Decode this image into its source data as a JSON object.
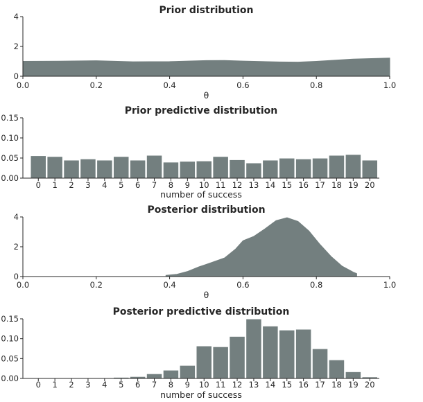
{
  "chart_data": [
    {
      "type": "area",
      "title": "Prior distribution",
      "xlabel": "θ",
      "ylabel": "",
      "xlim": [
        0,
        1
      ],
      "ylim": [
        0,
        4
      ],
      "xticks": [
        "0.0",
        "0.2",
        "0.4",
        "0.6",
        "0.8",
        "1.0"
      ],
      "yticks": [
        "0",
        "2",
        "4"
      ],
      "fill_color": "#737f7f",
      "x": [
        0.0,
        0.1,
        0.2,
        0.3,
        0.4,
        0.5,
        0.55,
        0.6,
        0.7,
        0.75,
        0.8,
        0.9,
        1.0
      ],
      "y": [
        1.0,
        1.01,
        1.04,
        0.97,
        0.98,
        1.05,
        1.06,
        1.02,
        0.96,
        0.95,
        1.0,
        1.15,
        1.22
      ]
    },
    {
      "type": "bar",
      "title": "Prior predictive distribution",
      "xlabel": "number of success",
      "ylabel": "",
      "ylim": [
        0,
        0.15
      ],
      "yticks": [
        "0.00",
        "0.05",
        "0.10",
        "0.15"
      ],
      "bar_color": "#737f7f",
      "categories": [
        "0",
        "1",
        "2",
        "3",
        "4",
        "5",
        "6",
        "7",
        "8",
        "9",
        "10",
        "11",
        "12",
        "13",
        "14",
        "15",
        "16",
        "17",
        "18",
        "19",
        "20"
      ],
      "values": [
        0.055,
        0.053,
        0.044,
        0.047,
        0.044,
        0.053,
        0.044,
        0.056,
        0.039,
        0.041,
        0.042,
        0.053,
        0.045,
        0.037,
        0.044,
        0.049,
        0.047,
        0.049,
        0.056,
        0.058,
        0.044
      ]
    },
    {
      "type": "area",
      "title": "Posterior distribution",
      "xlabel": "θ",
      "ylabel": "",
      "xlim": [
        0,
        1
      ],
      "ylim": [
        0,
        4
      ],
      "xticks": [
        "0.0",
        "0.2",
        "0.4",
        "0.6",
        "0.8",
        "1.0"
      ],
      "yticks": [
        "0",
        "2",
        "4"
      ],
      "fill_color": "#737f7f",
      "x": [
        0.39,
        0.42,
        0.45,
        0.48,
        0.51,
        0.55,
        0.58,
        0.6,
        0.63,
        0.66,
        0.69,
        0.72,
        0.75,
        0.78,
        0.81,
        0.84,
        0.87,
        0.9,
        0.91
      ],
      "y": [
        0.08,
        0.15,
        0.35,
        0.65,
        0.9,
        1.25,
        1.85,
        2.4,
        2.7,
        3.2,
        3.75,
        3.95,
        3.7,
        3.05,
        2.15,
        1.35,
        0.7,
        0.3,
        0.2
      ]
    },
    {
      "type": "bar",
      "title": "Posterior predictive distribution",
      "xlabel": "number of success",
      "ylabel": "",
      "ylim": [
        0,
        0.15
      ],
      "yticks": [
        "0.00",
        "0.05",
        "0.10",
        "0.15"
      ],
      "bar_color": "#737f7f",
      "categories": [
        "0",
        "1",
        "2",
        "3",
        "4",
        "5",
        "6",
        "7",
        "8",
        "9",
        "10",
        "11",
        "12",
        "13",
        "14",
        "15",
        "16",
        "17",
        "18",
        "19",
        "20"
      ],
      "values": [
        0.0,
        0.0,
        0.0,
        0.0,
        0.0,
        0.002,
        0.004,
        0.011,
        0.02,
        0.032,
        0.081,
        0.079,
        0.105,
        0.149,
        0.131,
        0.121,
        0.123,
        0.074,
        0.046,
        0.016,
        0.003
      ]
    }
  ]
}
